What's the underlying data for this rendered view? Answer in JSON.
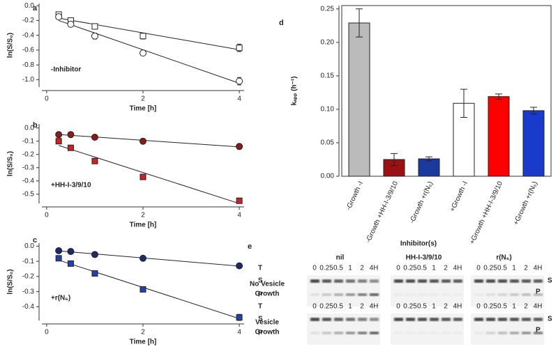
{
  "chart_data": [
    {
      "type": "scatter",
      "panel_label": "a",
      "ylabel": "ln(S/S₀)",
      "xlabel": "Time [h]",
      "annotation": "-Inhibitor",
      "x": [
        0.25,
        0.5,
        1,
        2,
        4
      ],
      "xlim": [
        -0.1,
        4.1
      ],
      "xticks": [
        0,
        2,
        4
      ],
      "ylim": [
        -1.1,
        0.03
      ],
      "yticks": [
        {
          "value": 0,
          "label": "0.0"
        },
        -0.2,
        -0.4,
        -0.6,
        -0.8,
        {
          "value": -1,
          "label": "-1.0"
        }
      ],
      "series": [
        {
          "marker": "square",
          "color": "#ffffff",
          "values": [
            -0.12,
            -0.2,
            -0.28,
            -0.41,
            -0.57
          ],
          "errors": [
            0.03,
            0.03,
            0.03,
            0.04,
            0.05
          ]
        },
        {
          "marker": "circle",
          "color": "#ffffff",
          "values": [
            -0.15,
            -0.25,
            -0.41,
            -0.64,
            -1.02
          ],
          "errors": [
            0.02,
            0.02,
            0.04,
            0.03,
            0.05
          ]
        }
      ]
    },
    {
      "type": "scatter",
      "panel_label": "b",
      "ylabel": "ln(S/S₀)",
      "xlabel": "Time [h]",
      "annotation": "+HH-I-3/9/10",
      "x": [
        0.25,
        0.5,
        1,
        2,
        4
      ],
      "xlim": [
        -0.1,
        4.1
      ],
      "xticks": [
        0,
        2,
        4
      ],
      "ylim": [
        -0.57,
        0.03
      ],
      "yticks": [
        {
          "value": 0,
          "label": "0.0"
        },
        -0.1,
        -0.2,
        -0.3,
        -0.4,
        -0.5
      ],
      "series": [
        {
          "marker": "circle",
          "color": "#8b1a1a",
          "values": [
            -0.05,
            -0.05,
            -0.07,
            -0.1,
            -0.14
          ],
          "errors": [
            0.005,
            0.005,
            0.01,
            0.01,
            0.02
          ]
        },
        {
          "marker": "square",
          "color": "#cc2222",
          "values": [
            -0.1,
            -0.15,
            -0.25,
            -0.37,
            -0.55
          ],
          "errors": [
            0.01,
            0.01,
            0.01,
            0.02,
            0.02
          ]
        }
      ]
    },
    {
      "type": "scatter",
      "panel_label": "c",
      "ylabel": "ln(S/S₀)",
      "xlabel": "Time [h]",
      "annotation": "+r(N₆)",
      "x": [
        0.25,
        0.5,
        1,
        2,
        4
      ],
      "xlim": [
        -0.1,
        4.1
      ],
      "xticks": [
        0,
        2,
        4
      ],
      "ylim": [
        -0.49,
        0.02
      ],
      "yticks": [
        {
          "value": 0,
          "label": "0.0"
        },
        -0.1,
        -0.2,
        -0.3,
        -0.4
      ],
      "series": [
        {
          "marker": "circle",
          "color": "#1a2a6b",
          "values": [
            -0.03,
            -0.035,
            -0.055,
            -0.08,
            -0.13
          ],
          "errors": [
            0.004,
            0.004,
            0.005,
            0.005,
            0.006
          ]
        },
        {
          "marker": "square",
          "color": "#2244aa",
          "values": [
            -0.08,
            -0.115,
            -0.18,
            -0.285,
            -0.47
          ],
          "errors": [
            0.005,
            0.006,
            0.008,
            0.01,
            0.02
          ]
        }
      ]
    },
    {
      "type": "bar",
      "panel_label": "d",
      "ylabel": "kₐₚₚ (h⁻¹)",
      "xlabel": "Inhibitor(s)",
      "categories": [
        "-Growth -I",
        "-Growth +HH-I-3/9/10",
        "-Growth +r(N₆)",
        "+Growth -I",
        "+Growth +HH-I-3/9/10",
        "+Growth +r(N₆)"
      ],
      "values": [
        0.229,
        0.025,
        0.026,
        0.109,
        0.119,
        0.098
      ],
      "errors": [
        0.021,
        0.009,
        0.003,
        0.021,
        0.004,
        0.005
      ],
      "colors": [
        "#bbbbbb",
        "#9b1010",
        "#1a3aa0",
        "#ffffff",
        "#ff0000",
        "#1a3acc"
      ],
      "ylim": [
        0,
        0.255
      ],
      "yticks": [
        {
          "value": 0,
          "label": "0.00"
        },
        0.05,
        {
          "value": 0.1,
          "label": "0.10"
        },
        0.15,
        {
          "value": 0.2,
          "label": "0.20"
        },
        0.25
      ]
    }
  ],
  "gel": {
    "panel_label": "e",
    "groups": [
      "nil",
      "HH-I-3/9/10",
      "r(N₆)"
    ],
    "lanes": [
      "0",
      "0.25",
      "0.5",
      "1",
      "2",
      "4H"
    ],
    "rows": [
      {
        "label": [
          "No Vesicle",
          "Growth"
        ]
      },
      {
        "label": [
          "Vesicle",
          "Growth"
        ]
      }
    ],
    "time_label": "T",
    "substrate_label": "S",
    "product_label": "P"
  }
}
